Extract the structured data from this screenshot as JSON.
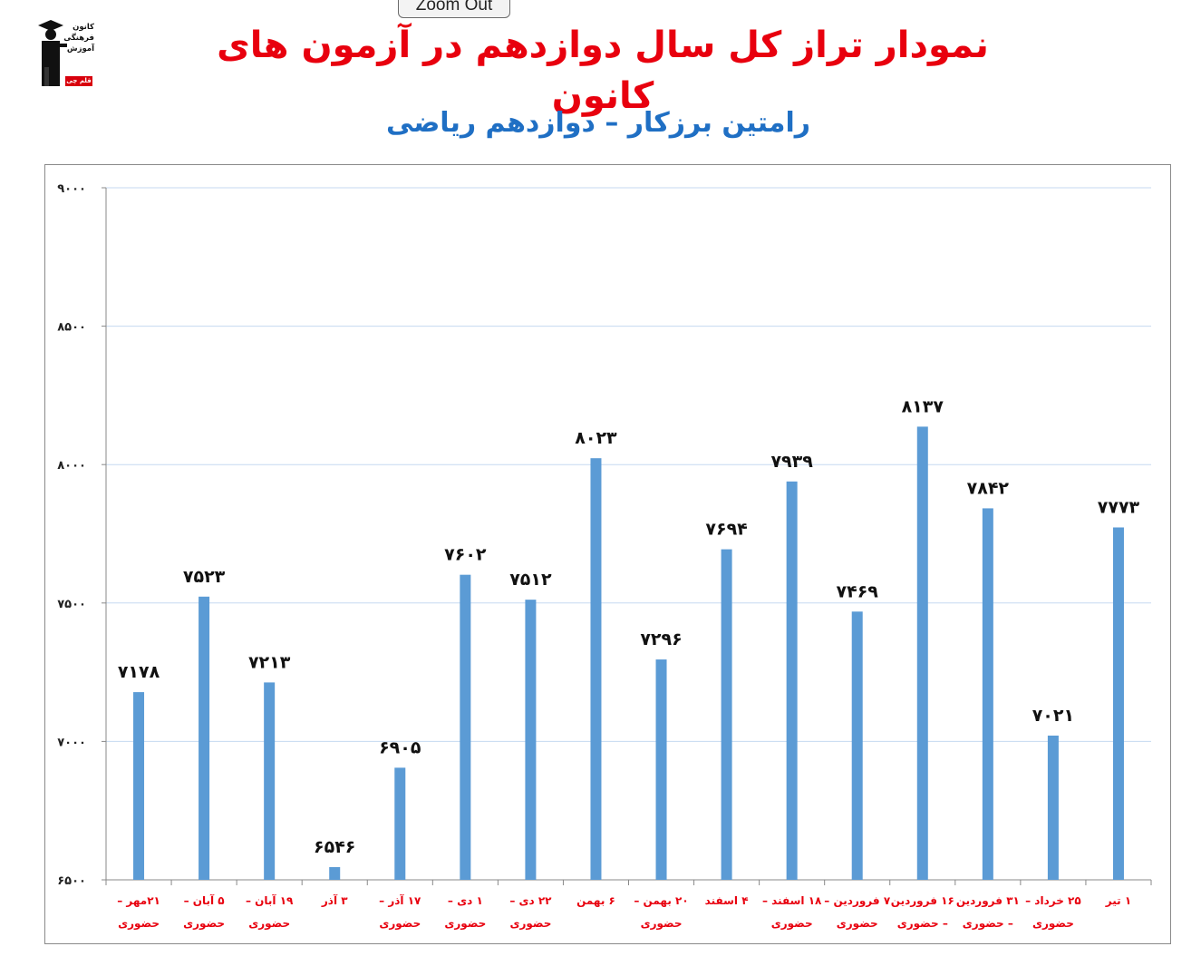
{
  "toolbar": {
    "zoom_out_label": "Zoom Out"
  },
  "logo": {
    "lines": [
      "کانون",
      "فرهنگی",
      "آموزش"
    ],
    "badge": "قلم چی"
  },
  "colors": {
    "bar": "#5b9bd5",
    "title": "#e8000e",
    "subtitle": "#1f6fc4",
    "grid": "#c5d9f1",
    "xlabel": "#e8000e"
  },
  "chart_data": {
    "type": "bar",
    "title": "نمودار تراز کل سال دوازدهم در آزمون های کانون",
    "subtitle": "رامتین برزکار – دوازدهم ریاضی",
    "ylim": [
      6500,
      9000
    ],
    "yticks": [
      6500,
      7000,
      7500,
      8000,
      8500,
      9000
    ],
    "ytick_labels": [
      "۶۵۰۰",
      "۷۰۰۰",
      "۷۵۰۰",
      "۸۰۰۰",
      "۸۵۰۰",
      "۹۰۰۰"
    ],
    "grid": true,
    "categories": [
      [
        "۲۱مهر –",
        "حضوری"
      ],
      [
        "۵ آبان –",
        "حضوری"
      ],
      [
        "۱۹ آبان –",
        "حضوری"
      ],
      [
        "۳ آذر"
      ],
      [
        "۱۷ آذر –",
        "حضوری"
      ],
      [
        "۱ دی –",
        "حضوری"
      ],
      [
        "۲۲ دی –",
        "حضوری"
      ],
      [
        "۶ بهمن"
      ],
      [
        "۲۰ بهمن –",
        "حضوری"
      ],
      [
        "۴ اسفند"
      ],
      [
        "۱۸ اسفند –",
        "حضوری"
      ],
      [
        "۷ فروردین –",
        "حضوری"
      ],
      [
        "۱۶ فروردین",
        "– حضوری"
      ],
      [
        "۳۱ فروردین",
        "– حضوری"
      ],
      [
        "۲۵ خرداد –",
        "حضوری"
      ],
      [
        "۱ تیر"
      ]
    ],
    "values": [
      7178,
      7523,
      7213,
      6546,
      6905,
      7602,
      7512,
      8023,
      7296,
      7694,
      7939,
      7469,
      8137,
      7842,
      7021,
      7773
    ],
    "value_labels": [
      "۷۱۷۸",
      "۷۵۲۳",
      "۷۲۱۳",
      "۶۵۴۶",
      "۶۹۰۵",
      "۷۶۰۲",
      "۷۵۱۲",
      "۸۰۲۳",
      "۷۲۹۶",
      "۷۶۹۴",
      "۷۹۳۹",
      "۷۴۶۹",
      "۸۱۳۷",
      "۷۸۴۲",
      "۷۰۲۱",
      "۷۷۷۳"
    ]
  }
}
